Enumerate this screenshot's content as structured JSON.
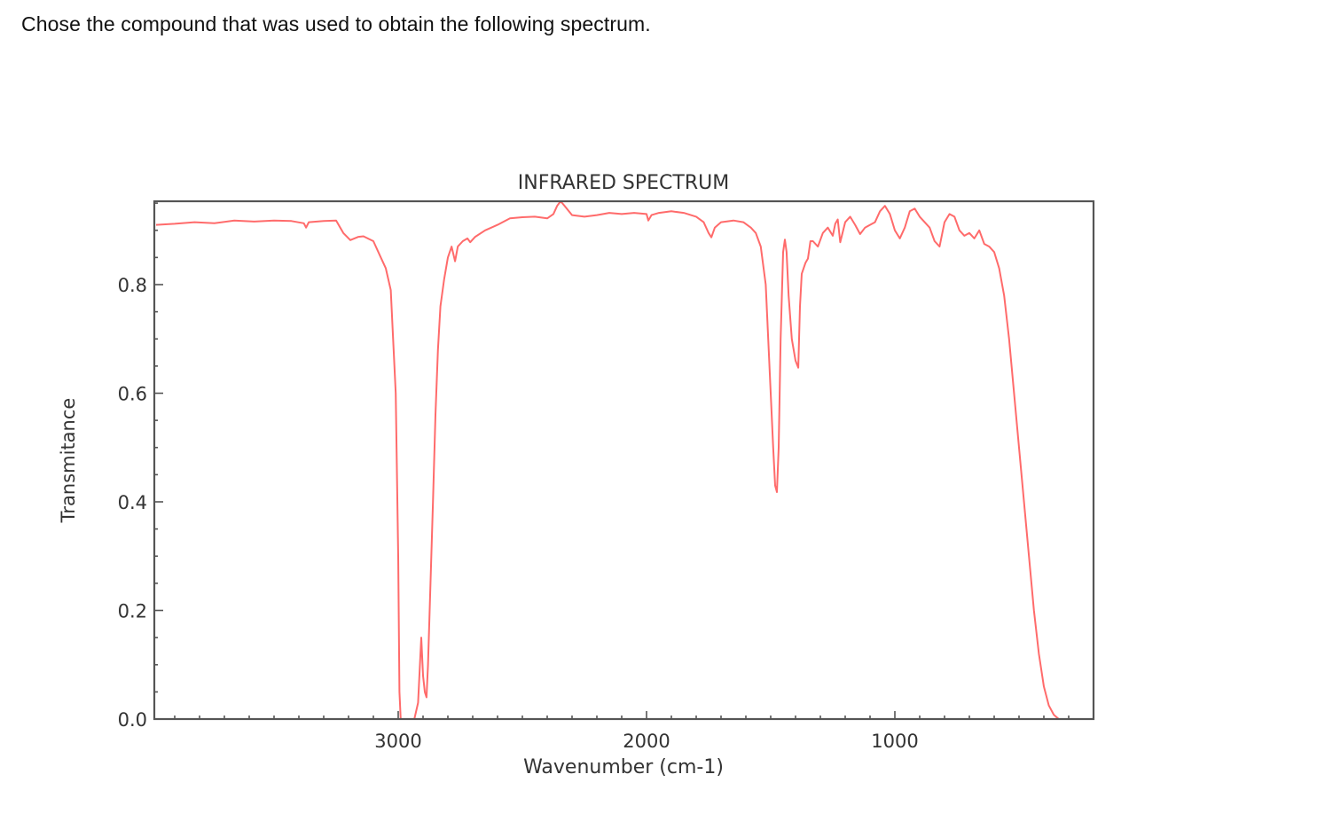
{
  "question": {
    "text": "Chose the compound that was used to obtain the following spectrum."
  },
  "chart_data": {
    "type": "line",
    "title": "INFRARED SPECTRUM",
    "xlabel": "Wavenumber (cm-1)",
    "ylabel": "Transmitance",
    "xlim": [
      3982,
      200
    ],
    "ylim": [
      0.0,
      0.954
    ],
    "x_reversed": true,
    "grid": false,
    "legend": null,
    "line_color": "#ff6b6b",
    "x_ticks": [
      {
        "value": 3000,
        "label": "3000"
      },
      {
        "value": 2000,
        "label": "2000"
      },
      {
        "value": 1000,
        "label": "1000"
      }
    ],
    "y_ticks": [
      {
        "value": 0.0,
        "label": "0.0"
      },
      {
        "value": 0.2,
        "label": "0.2"
      },
      {
        "value": 0.4,
        "label": "0.4"
      },
      {
        "value": 0.6,
        "label": "0.6"
      },
      {
        "value": 0.8,
        "label": "0.8"
      }
    ],
    "series": [
      {
        "name": "Transmittance",
        "x": [
          3975,
          3900,
          3820,
          3740,
          3660,
          3580,
          3500,
          3430,
          3380,
          3371,
          3360,
          3300,
          3250,
          3221,
          3193,
          3160,
          3140,
          3100,
          3070,
          3050,
          3030,
          3010,
          3000,
          2995,
          2990,
          2960,
          2935,
          2920,
          2907,
          2900,
          2893,
          2886,
          2880,
          2870,
          2860,
          2850,
          2840,
          2830,
          2815,
          2800,
          2785,
          2771,
          2760,
          2740,
          2721,
          2710,
          2690,
          2650,
          2600,
          2550,
          2500,
          2450,
          2400,
          2375,
          2360,
          2346,
          2330,
          2300,
          2250,
          2200,
          2150,
          2100,
          2050,
          2000,
          1993,
          1980,
          1950,
          1900,
          1850,
          1800,
          1770,
          1750,
          1739,
          1725,
          1700,
          1650,
          1610,
          1580,
          1560,
          1540,
          1520,
          1500,
          1490,
          1482,
          1475,
          1468,
          1460,
          1450,
          1443,
          1436,
          1428,
          1415,
          1400,
          1389,
          1382,
          1375,
          1360,
          1350,
          1340,
          1330,
          1310,
          1290,
          1270,
          1250,
          1240,
          1230,
          1220,
          1200,
          1180,
          1160,
          1140,
          1120,
          1100,
          1080,
          1060,
          1040,
          1020,
          1000,
          980,
          960,
          940,
          920,
          900,
          880,
          860,
          840,
          820,
          800,
          780,
          760,
          740,
          720,
          700,
          680,
          660,
          640,
          620,
          600,
          580,
          560,
          540,
          520,
          500,
          480,
          460,
          440,
          420,
          400,
          380,
          360,
          340,
          320,
          300,
          280,
          260,
          240,
          220,
          200
        ],
        "y": [
          0.91,
          0.912,
          0.915,
          0.913,
          0.918,
          0.916,
          0.918,
          0.917,
          0.913,
          0.905,
          0.915,
          0.917,
          0.918,
          0.895,
          0.882,
          0.888,
          0.889,
          0.88,
          0.85,
          0.83,
          0.79,
          0.6,
          0.3,
          0.05,
          0.0,
          0.0,
          0.0,
          0.03,
          0.15,
          0.08,
          0.05,
          0.04,
          0.1,
          0.25,
          0.4,
          0.56,
          0.68,
          0.76,
          0.81,
          0.85,
          0.87,
          0.843,
          0.87,
          0.88,
          0.885,
          0.878,
          0.888,
          0.9,
          0.91,
          0.922,
          0.924,
          0.925,
          0.922,
          0.93,
          0.945,
          0.954,
          0.945,
          0.928,
          0.925,
          0.928,
          0.932,
          0.93,
          0.932,
          0.93,
          0.918,
          0.928,
          0.932,
          0.935,
          0.932,
          0.925,
          0.915,
          0.895,
          0.887,
          0.905,
          0.915,
          0.918,
          0.915,
          0.905,
          0.895,
          0.87,
          0.8,
          0.6,
          0.5,
          0.43,
          0.418,
          0.5,
          0.7,
          0.86,
          0.883,
          0.86,
          0.78,
          0.7,
          0.66,
          0.647,
          0.76,
          0.82,
          0.84,
          0.848,
          0.88,
          0.88,
          0.87,
          0.895,
          0.905,
          0.89,
          0.912,
          0.92,
          0.878,
          0.915,
          0.925,
          0.91,
          0.893,
          0.905,
          0.91,
          0.915,
          0.935,
          0.945,
          0.93,
          0.9,
          0.885,
          0.905,
          0.935,
          0.94,
          0.925,
          0.915,
          0.905,
          0.88,
          0.87,
          0.915,
          0.93,
          0.925,
          0.9,
          0.89,
          0.895,
          0.885,
          0.9,
          0.875,
          0.87,
          0.86,
          0.83,
          0.78,
          0.7,
          0.6,
          0.5,
          0.4,
          0.3,
          0.2,
          0.12,
          0.06,
          0.025,
          0.008,
          0.0,
          0.0,
          0.0,
          0.0,
          0.0,
          0.0,
          0.0,
          0.0
        ]
      }
    ],
    "annotations": []
  }
}
